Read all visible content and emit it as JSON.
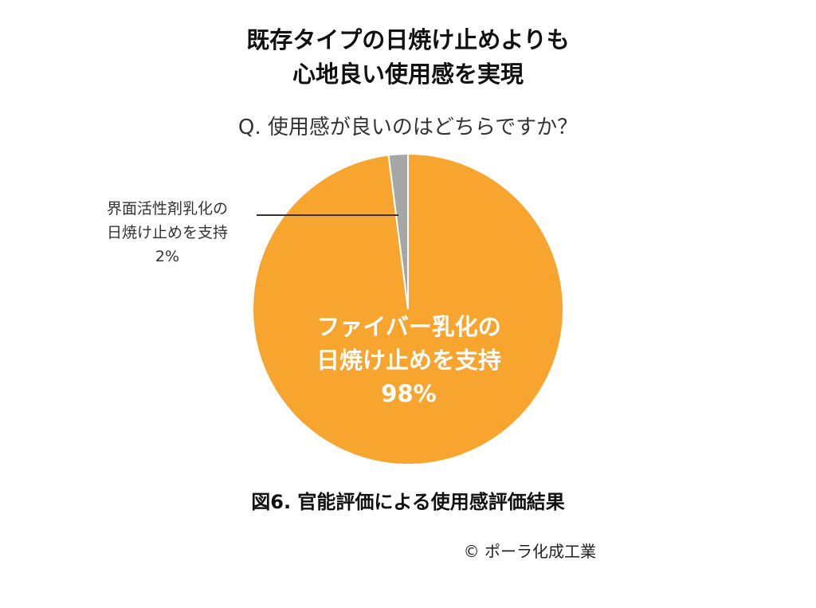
{
  "title": {
    "line1": "既存タイプの日焼け止めよりも",
    "line2": "心地良い使用感を実現"
  },
  "question": "Q. 使用感が良いのはどちらですか？",
  "chart_data": {
    "type": "pie",
    "slices": [
      {
        "label_lines": [
          "ファイバー乳化の",
          "日焼け止めを支持"
        ],
        "value": 98,
        "value_label": "98%",
        "color": "#F8A530"
      },
      {
        "label_lines": [
          "界面活性剤乳化の",
          "日焼け止めを支持"
        ],
        "value": 2,
        "value_label": "2%",
        "color": "#A6A6A6"
      }
    ]
  },
  "caption": "図6. 官能評価による使用感評価結果",
  "credit": "© ポーラ化成工業"
}
